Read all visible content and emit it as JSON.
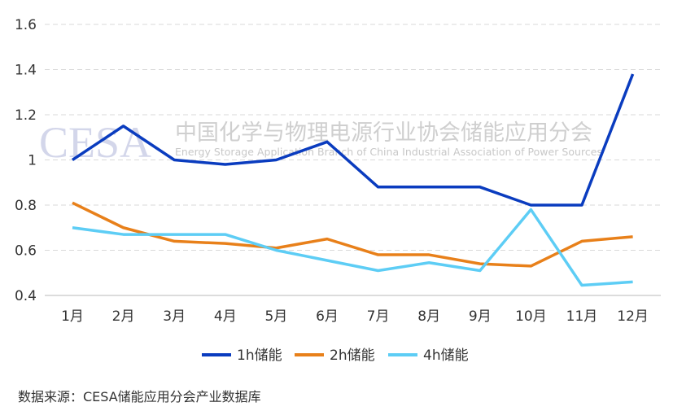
{
  "chart_data": {
    "type": "line",
    "categories": [
      "1月",
      "2月",
      "3月",
      "4月",
      "5月",
      "6月",
      "7月",
      "8月",
      "9月",
      "10月",
      "11月",
      "12月"
    ],
    "series": [
      {
        "name": "1h储能",
        "color": "#0a3cbf",
        "values": [
          1.0,
          1.15,
          1.0,
          0.98,
          1.0,
          1.08,
          0.88,
          0.88,
          0.88,
          0.8,
          0.8,
          1.38
        ]
      },
      {
        "name": "2h储能",
        "color": "#e8801a",
        "values": [
          0.81,
          0.7,
          0.64,
          0.63,
          0.61,
          0.65,
          0.58,
          0.58,
          0.54,
          0.53,
          0.64,
          0.66
        ]
      },
      {
        "name": "4h储能",
        "color": "#5dcdf5",
        "values": [
          0.7,
          0.67,
          0.67,
          0.67,
          0.6,
          0.555,
          0.51,
          0.545,
          0.51,
          0.78,
          0.445,
          0.46
        ]
      }
    ],
    "ylim": [
      0.4,
      1.6
    ],
    "yticks": [
      "0.4",
      "0.6",
      "0.8",
      "1",
      "1.2",
      "1.4",
      "1.6"
    ],
    "grid": true,
    "legend": "bottom"
  },
  "watermark": {
    "logo": "CESA",
    "cn": "中国化学与物理电源行业协会储能应用分会",
    "en": "Energy Storage Application Branch of China Industrial Association of Power Sources"
  },
  "source": "数据来源：CESA储能应用分会产业数据库"
}
